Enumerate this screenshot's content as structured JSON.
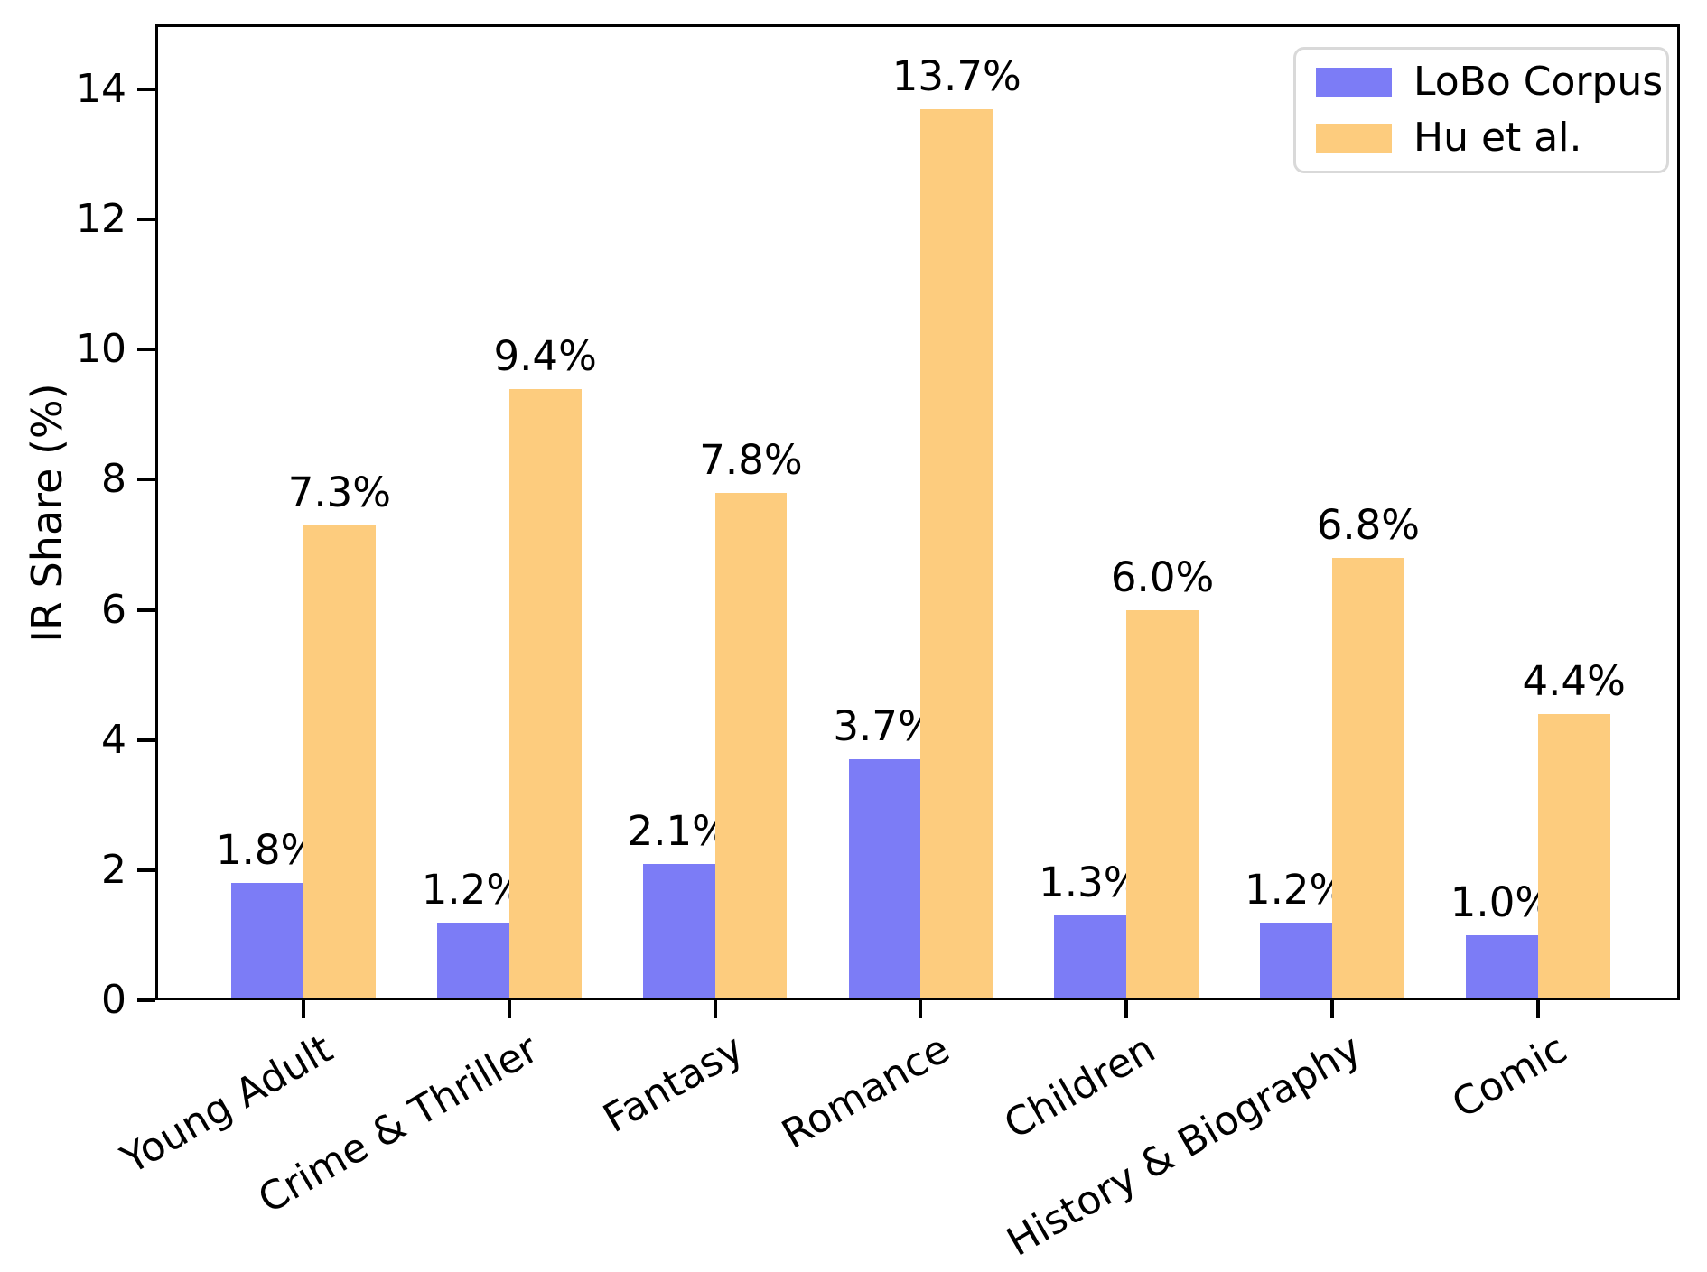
{
  "chart_data": {
    "type": "bar",
    "title": "",
    "ylabel": "IR Share (%)",
    "xlabel": "",
    "ylim": [
      0,
      15
    ],
    "yticks": [
      0,
      2,
      4,
      6,
      8,
      10,
      12,
      14
    ],
    "grid": false,
    "legend_position": "upper right",
    "bar_label_suffix": "%",
    "categories": [
      "Young Adult",
      "Crime & Thriller",
      "Fantasy",
      "Romance",
      "Children",
      "History & Biography",
      "Comic"
    ],
    "series": [
      {
        "name": "LoBo Corpus",
        "color": "#7c7cf6",
        "values": [
          1.8,
          1.2,
          2.1,
          3.7,
          1.3,
          1.2,
          1.0
        ],
        "labels": [
          "1.8%",
          "1.2%",
          "2.1%",
          "3.7%",
          "1.3%",
          "1.2%",
          "1.0%"
        ]
      },
      {
        "name": "Hu et al.",
        "color": "#fdcc7e",
        "values": [
          7.3,
          9.4,
          7.8,
          13.7,
          6.0,
          6.8,
          4.4
        ],
        "labels": [
          "7.3%",
          "9.4%",
          "7.8%",
          "13.7%",
          "6.0%",
          "6.8%",
          "4.4%"
        ]
      }
    ]
  }
}
